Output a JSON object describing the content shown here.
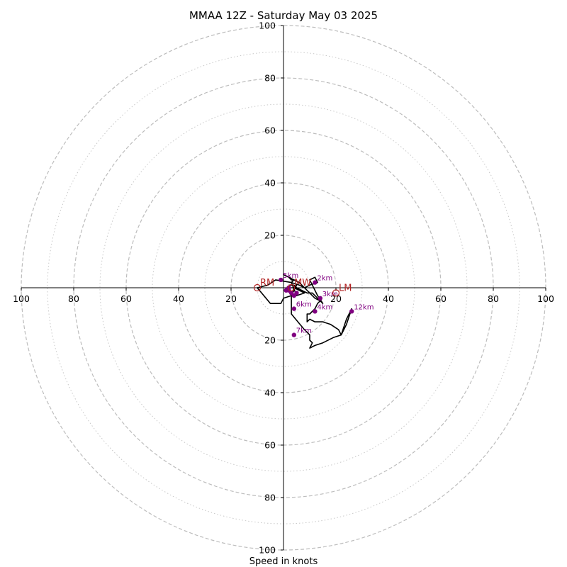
{
  "chart_data": {
    "type": "hodograph",
    "title": "MMAA 12Z - Saturday May 03 2025",
    "xlabel": "Speed in knots",
    "ylabel": "",
    "xlim": [
      -100,
      100
    ],
    "ylim": [
      -100,
      100
    ],
    "grid": true,
    "rings_major": [
      20,
      40,
      60,
      80,
      100
    ],
    "rings_minor": [
      10,
      30,
      50,
      70,
      90
    ],
    "x_tick_labels": [
      "100",
      "80",
      "60",
      "40",
      "20",
      "20",
      "40",
      "60",
      "80",
      "100"
    ],
    "y_tick_labels": [
      "100",
      "80",
      "60",
      "40",
      "20",
      "20",
      "40",
      "60",
      "80",
      "100"
    ],
    "hodograph_trace": {
      "color": "#000000",
      "u": [
        2,
        4,
        5,
        7,
        9,
        11,
        12,
        13,
        14,
        15,
        13,
        10,
        12,
        13,
        10,
        8,
        6,
        4,
        2,
        0,
        2,
        3,
        4,
        3,
        6,
        8,
        10,
        12,
        14,
        13,
        12,
        10,
        9,
        9,
        10,
        12,
        15,
        18,
        21,
        22,
        24,
        26,
        24,
        22,
        19,
        15,
        12,
        10,
        11,
        10,
        10,
        8,
        3,
        3,
        3,
        3,
        3,
        4,
        8,
        5,
        3,
        -3,
        -6,
        -10,
        -5,
        -3,
        -1,
        0,
        3,
        5,
        4,
        3
      ],
      "v": [
        1,
        1,
        0,
        -1,
        -2,
        -2,
        -3,
        -4,
        -5,
        -6,
        -3,
        3,
        4,
        2,
        1,
        0,
        2,
        3,
        4,
        5,
        4,
        3,
        3,
        2,
        1,
        0,
        -2,
        -4,
        -5,
        -6,
        -8,
        -10,
        -10,
        -13,
        -12,
        -13,
        -13,
        -14,
        -16,
        -18,
        -14,
        -8,
        -12,
        -18,
        -19,
        -21,
        -22,
        -23,
        -21,
        -20,
        -18,
        -16,
        -10,
        -8,
        -6,
        -5,
        -3,
        0,
        -2,
        -3,
        2,
        3,
        1,
        0,
        -6,
        -6,
        -6,
        -4,
        -3,
        1,
        0,
        0
      ]
    },
    "height_markers": {
      "color": "#800080",
      "points": [
        {
          "label": "",
          "u": 2,
          "v": 0
        },
        {
          "label": "2km",
          "u": 12,
          "v": 2
        },
        {
          "label": "3km",
          "u": 14,
          "v": -4
        },
        {
          "label": "4km",
          "u": 12,
          "v": -9
        },
        {
          "label": "5km",
          "u": -1,
          "v": 3
        },
        {
          "label": "6km",
          "u": 4,
          "v": -8
        },
        {
          "label": "7km",
          "u": 4,
          "v": -18
        },
        {
          "label": "12km",
          "u": 26,
          "v": -9
        },
        {
          "label": "",
          "u": 1,
          "v": -1
        },
        {
          "label": "",
          "u": 2,
          "v": -1
        },
        {
          "label": "",
          "u": 3,
          "v": -2
        },
        {
          "label": "",
          "u": 4,
          "v": -3
        },
        {
          "label": "",
          "u": 5,
          "v": -2
        }
      ]
    },
    "storm_motion": {
      "color": "#b22222",
      "points": [
        {
          "label": "RM",
          "u": -10,
          "v": 0
        },
        {
          "label": "MW",
          "u": 3,
          "v": 0
        },
        {
          "label": "LM",
          "u": 20,
          "v": -2
        }
      ]
    }
  }
}
